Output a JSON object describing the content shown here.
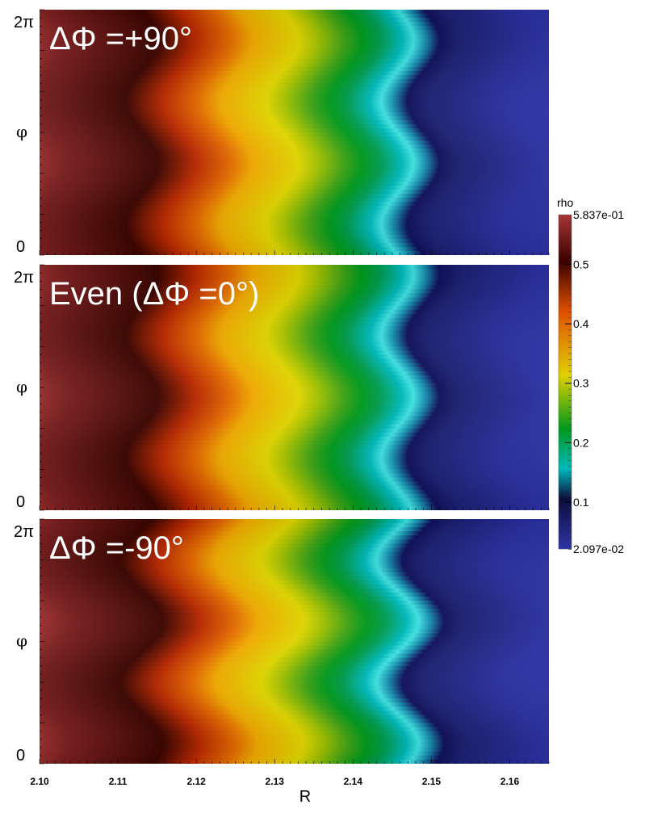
{
  "chart_data": {
    "type": "heatmap",
    "variable": "rho",
    "xlabel": "R",
    "ylabel": "φ",
    "xlim": [
      2.1,
      2.165
    ],
    "x_ticks": [
      "2.10",
      "2.11",
      "2.12",
      "2.13",
      "2.14",
      "2.15",
      "2.16"
    ],
    "y_ticks": [
      "0",
      "2π"
    ],
    "panels": [
      {
        "title": "ΔΦ =+90°",
        "phase_shift_deg": 90
      },
      {
        "title": "Even (ΔΦ =0°)",
        "phase_shift_deg": 0
      },
      {
        "title": "ΔΦ =-90°",
        "phase_shift_deg": -90
      }
    ],
    "colorbar": {
      "title": "rho",
      "min_label": "2.097e-02",
      "max_label": "5.837e-01",
      "min": 0.02097,
      "max": 0.5837,
      "ticks": [
        "0.5",
        "0.4",
        "0.3",
        "0.2",
        "0.1"
      ],
      "tick_values": [
        0.5,
        0.4,
        0.3,
        0.2,
        0.1
      ],
      "colors": [
        "#2e34a6",
        "#0c0d3a",
        "#00b8ba",
        "#00991c",
        "#e0d000",
        "#e05000",
        "#3a0000",
        "#a83535"
      ]
    }
  }
}
